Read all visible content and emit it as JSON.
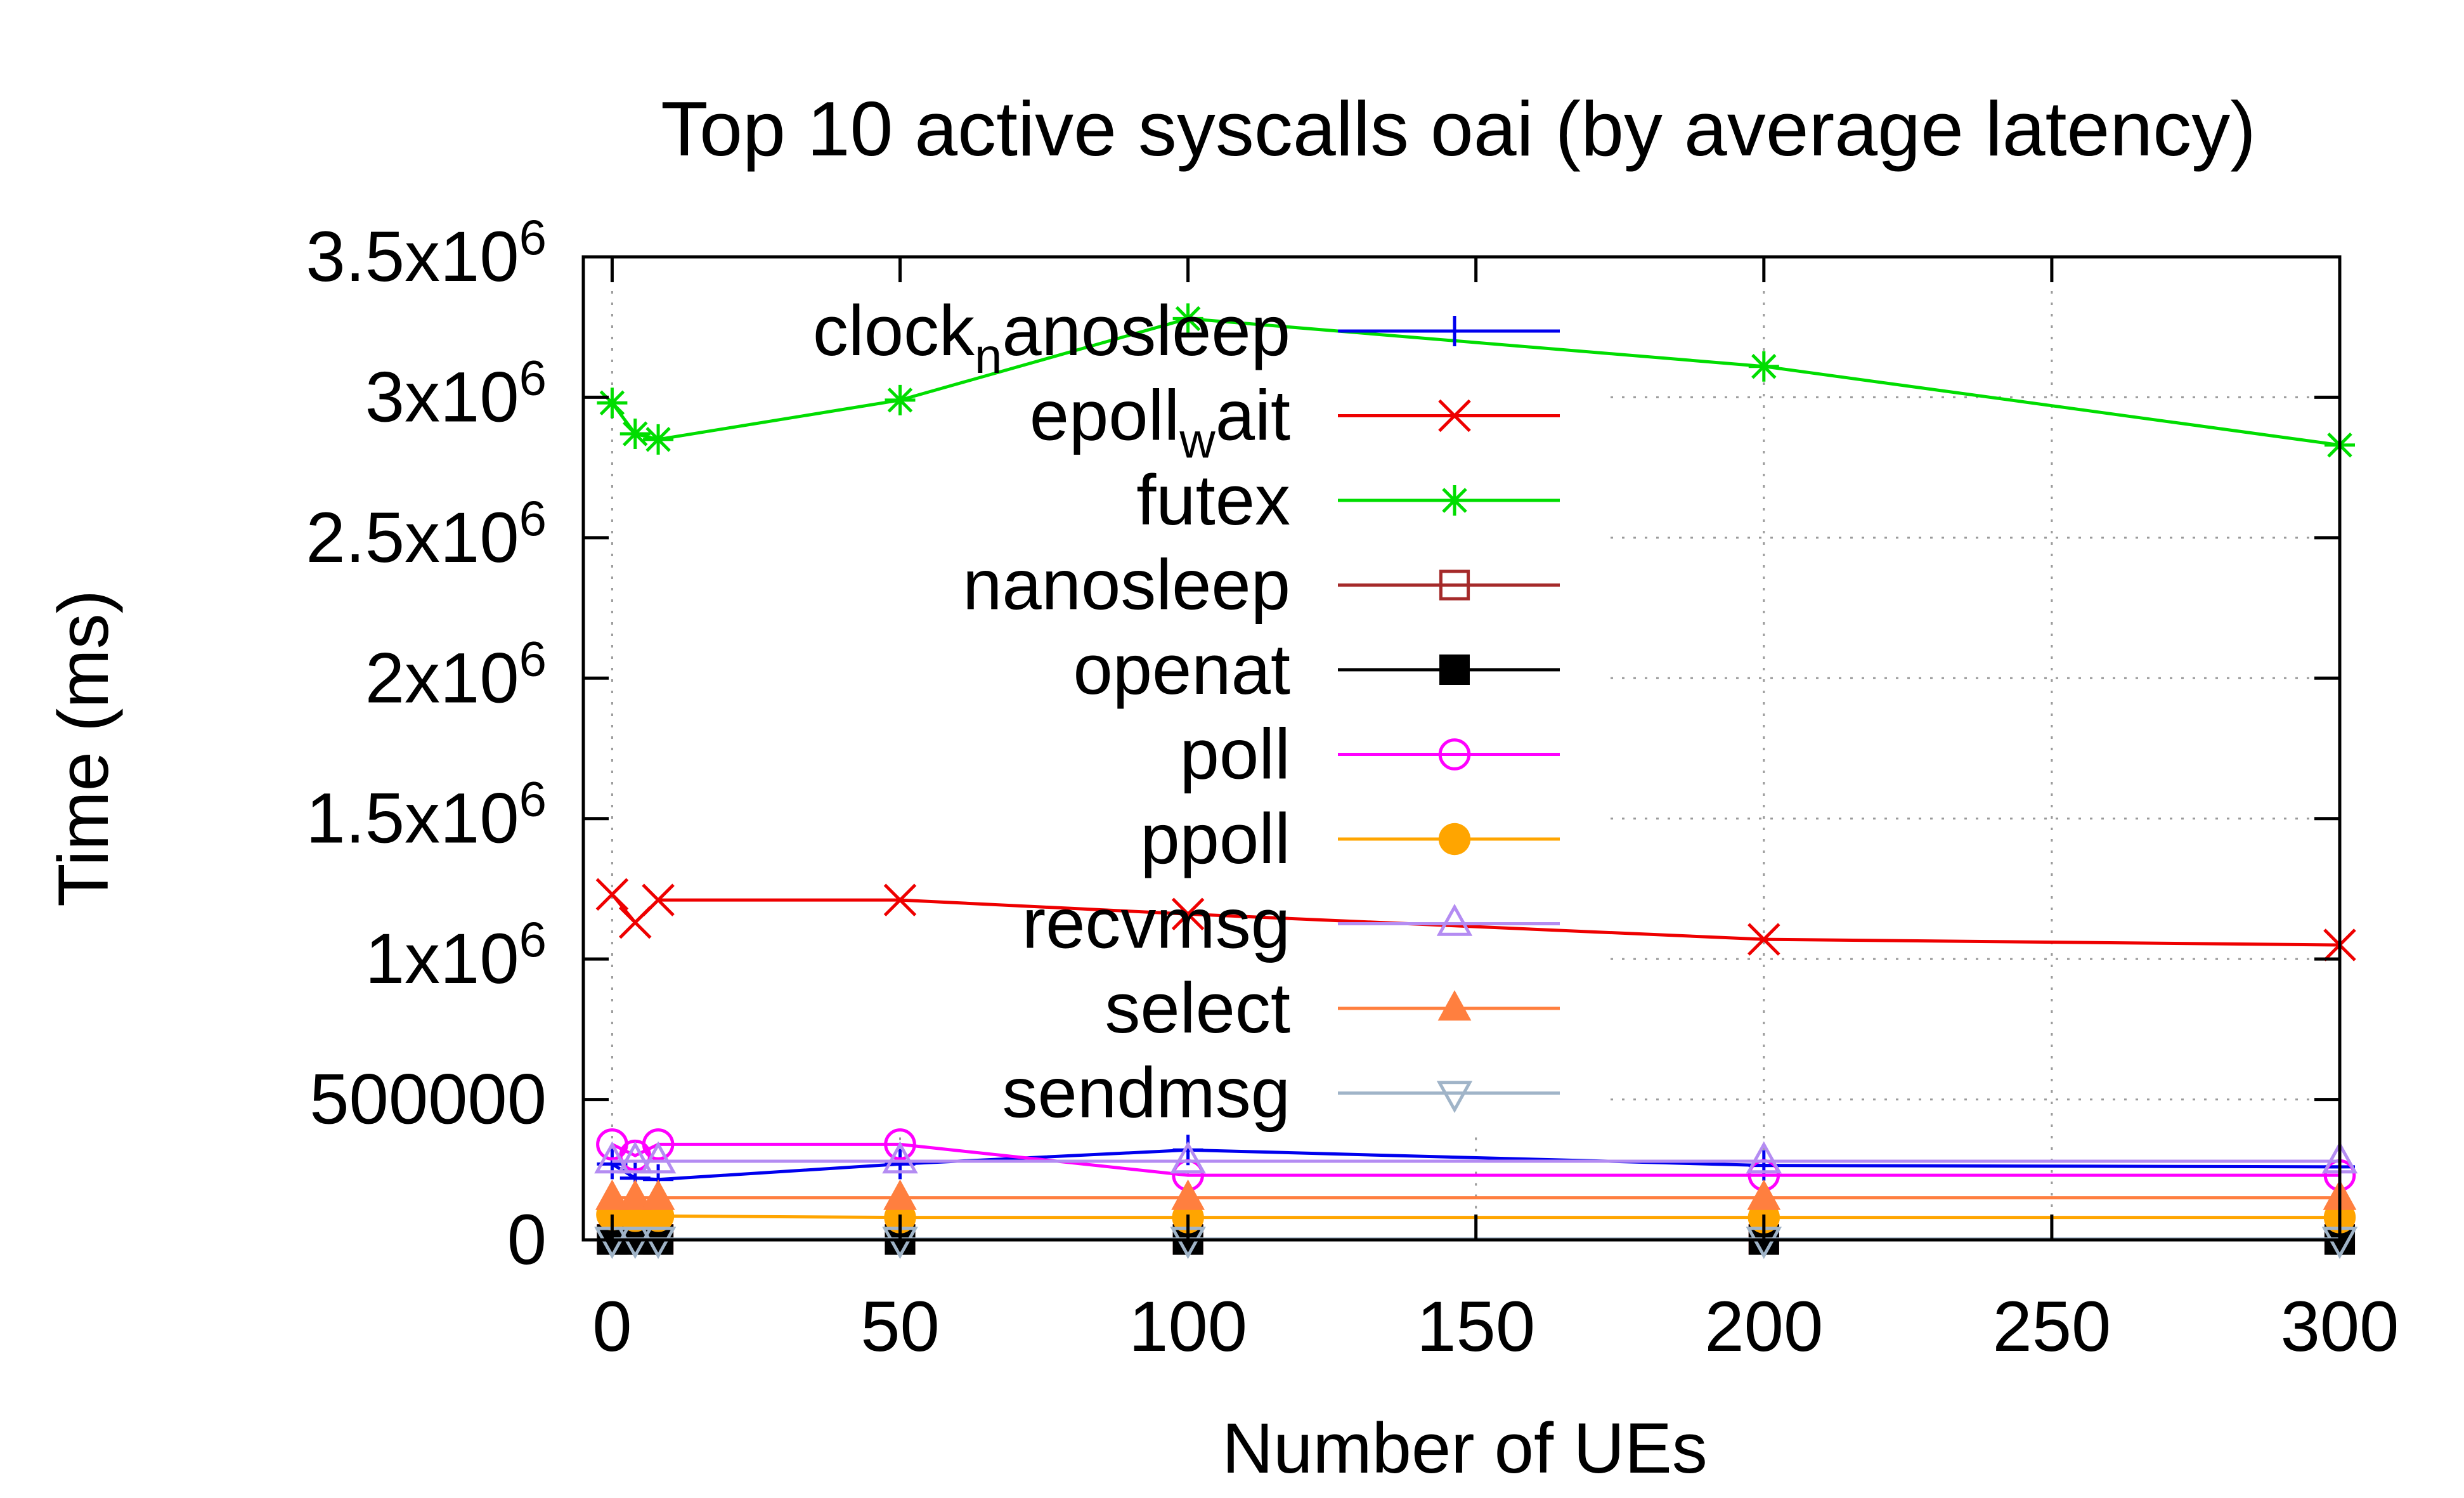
{
  "chart_data": {
    "type": "line",
    "title": "Top 10 active syscalls oai (by average latency)",
    "xlabel": "Number of UEs",
    "ylabel": "Time (ms)",
    "xlim": [
      -5,
      300
    ],
    "ylim": [
      0,
      3500000
    ],
    "xticks": [
      0,
      50,
      100,
      150,
      200,
      250,
      300
    ],
    "xtick_labels": [
      "0",
      "50",
      "100",
      "150",
      "200",
      "250",
      "300"
    ],
    "yticks": [
      {
        "value": 0,
        "base": "0",
        "exp": ""
      },
      {
        "value": 500000,
        "base": "500000",
        "exp": ""
      },
      {
        "value": 1000000,
        "base": "1x10",
        "exp": "6"
      },
      {
        "value": 1500000,
        "base": "1.5x10",
        "exp": "6"
      },
      {
        "value": 2000000,
        "base": "2x10",
        "exp": "6"
      },
      {
        "value": 2500000,
        "base": "2.5x10",
        "exp": "6"
      },
      {
        "value": 3000000,
        "base": "3x10",
        "exp": "6"
      },
      {
        "value": 3500000,
        "base": "3.5x10",
        "exp": "6"
      }
    ],
    "grid": true,
    "legend_position": "top-left-inside",
    "x": [
      0,
      4,
      8,
      50,
      100,
      200,
      300
    ],
    "series": [
      {
        "name": "clock",
        "name_sub": "n",
        "name_rest": "anosleep",
        "color": "#0000ee",
        "marker": "plus",
        "values": [
          270000,
          220000,
          215000,
          270000,
          320000,
          265000,
          260000
        ]
      },
      {
        "name": "epoll",
        "name_sub": "w",
        "name_rest": "ait",
        "color": "#ee0000",
        "marker": "x",
        "values": [
          1230000,
          1130000,
          1210000,
          1210000,
          1160000,
          1070000,
          1050000
        ]
      },
      {
        "name": "futex",
        "name_sub": "",
        "name_rest": "",
        "color": "#00dd00",
        "marker": "star",
        "values": [
          2980000,
          2870000,
          2850000,
          2990000,
          3280000,
          3110000,
          2830000
        ]
      },
      {
        "name": "nanosleep",
        "name_sub": "",
        "name_rest": "",
        "color": "#a52a2a",
        "marker": "square-open",
        "values": [
          2000,
          2000,
          2000,
          2000,
          2000,
          2000,
          2000
        ]
      },
      {
        "name": "openat",
        "name_sub": "",
        "name_rest": "",
        "color": "#000000",
        "marker": "square-filled",
        "values": [
          1000,
          1000,
          1000,
          1000,
          1000,
          1000,
          1000
        ]
      },
      {
        "name": "poll",
        "name_sub": "",
        "name_rest": "",
        "color": "#ff00ff",
        "marker": "circle-open",
        "values": [
          340000,
          300000,
          340000,
          340000,
          230000,
          230000,
          230000
        ]
      },
      {
        "name": "ppoll",
        "name_sub": "",
        "name_rest": "",
        "color": "#ffa500",
        "marker": "circle-filled",
        "values": [
          90000,
          85000,
          85000,
          80000,
          80000,
          80000,
          80000
        ]
      },
      {
        "name": "recvmsg",
        "name_sub": "",
        "name_rest": "",
        "color": "#b48cf2",
        "marker": "triangle-open",
        "values": [
          280000,
          280000,
          280000,
          280000,
          280000,
          280000,
          280000
        ]
      },
      {
        "name": "select",
        "name_sub": "",
        "name_rest": "",
        "color": "#ff7f3f",
        "marker": "triangle-filled",
        "values": [
          150000,
          150000,
          150000,
          150000,
          150000,
          150000,
          150000
        ]
      },
      {
        "name": "sendmsg",
        "name_sub": "",
        "name_rest": "",
        "color": "#a0b4c8",
        "marker": "triangle-down-open",
        "values": [
          3000,
          3000,
          3000,
          3000,
          3000,
          3000,
          3000
        ]
      }
    ]
  }
}
